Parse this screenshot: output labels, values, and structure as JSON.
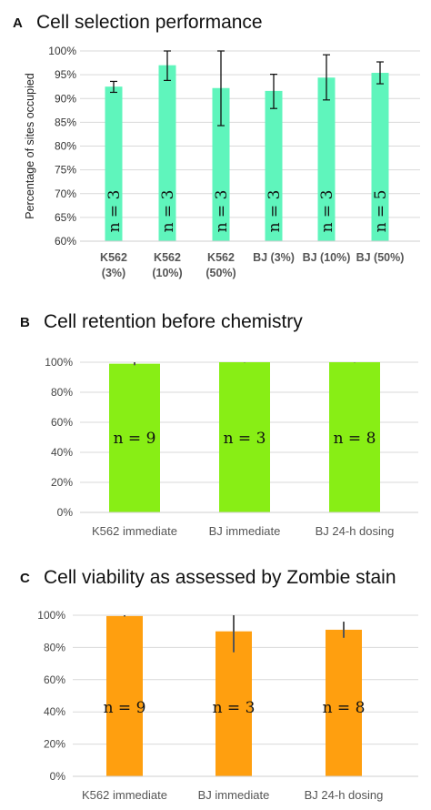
{
  "panels": [
    {
      "letter": "A",
      "title": "Cell selection performance"
    },
    {
      "letter": "B",
      "title": "Cell retention before chemistry"
    },
    {
      "letter": "C",
      "title": "Cell viability as assessed by Zombie stain"
    }
  ],
  "chart_data": [
    {
      "type": "bar",
      "title": "Cell selection performance",
      "ylabel": "Percentage of sites occupied",
      "ylim": [
        60,
        100
      ],
      "yticks": [
        60,
        65,
        70,
        75,
        80,
        85,
        90,
        95,
        100
      ],
      "ytick_labels": [
        "60%",
        "65%",
        "70%",
        "75%",
        "80%",
        "85%",
        "90%",
        "95%",
        "100%"
      ],
      "categories": [
        [
          "K562",
          "(3%)"
        ],
        [
          "K562",
          "(10%)"
        ],
        [
          "K562",
          "(50%)"
        ],
        [
          "BJ (3%)"
        ],
        [
          "BJ (10%)"
        ],
        [
          "BJ (50%)"
        ]
      ],
      "values": [
        92.5,
        97,
        92.2,
        91.6,
        94.4,
        95.4
      ],
      "error_low": [
        91.3,
        93.8,
        84.3,
        87.9,
        89.7,
        93.1
      ],
      "error_high": [
        93.6,
        100,
        100,
        95.1,
        99.2,
        97.7
      ],
      "n_labels": [
        "n = 3",
        "n = 3",
        "n = 3",
        "n = 3",
        "n = 3",
        "n = 5"
      ],
      "color": "#5ff5bc",
      "grid": true
    },
    {
      "type": "bar",
      "title": "Cell retention before chemistry",
      "ylim": [
        0,
        100
      ],
      "yticks": [
        0,
        20,
        40,
        60,
        80,
        100
      ],
      "ytick_labels": [
        "0%",
        "20%",
        "40%",
        "60%",
        "80%",
        "100%"
      ],
      "categories": [
        "K562 immediate",
        "BJ immediate",
        "BJ 24-h dosing"
      ],
      "values": [
        99,
        100,
        100
      ],
      "error_low": [
        98,
        99.8,
        99.8
      ],
      "error_high": [
        100,
        100,
        100
      ],
      "n_labels": [
        "n = 9",
        "n = 3",
        "n = 8"
      ],
      "color": "#88ee15",
      "grid": true
    },
    {
      "type": "bar",
      "title": "Cell viability as assessed by Zombie stain",
      "ylim": [
        0,
        100
      ],
      "yticks": [
        0,
        20,
        40,
        60,
        80,
        100
      ],
      "ytick_labels": [
        "0%",
        "20%",
        "40%",
        "60%",
        "80%",
        "100%"
      ],
      "categories": [
        "K562 immediate",
        "BJ immediate",
        "BJ 24-h dosing"
      ],
      "values": [
        99.5,
        90,
        91
      ],
      "error_low": [
        99.2,
        77,
        86
      ],
      "error_high": [
        100,
        100,
        96
      ],
      "n_labels": [
        "n = 9",
        "n = 3",
        "n = 8"
      ],
      "color": "#ff9f0f",
      "grid": true
    }
  ]
}
